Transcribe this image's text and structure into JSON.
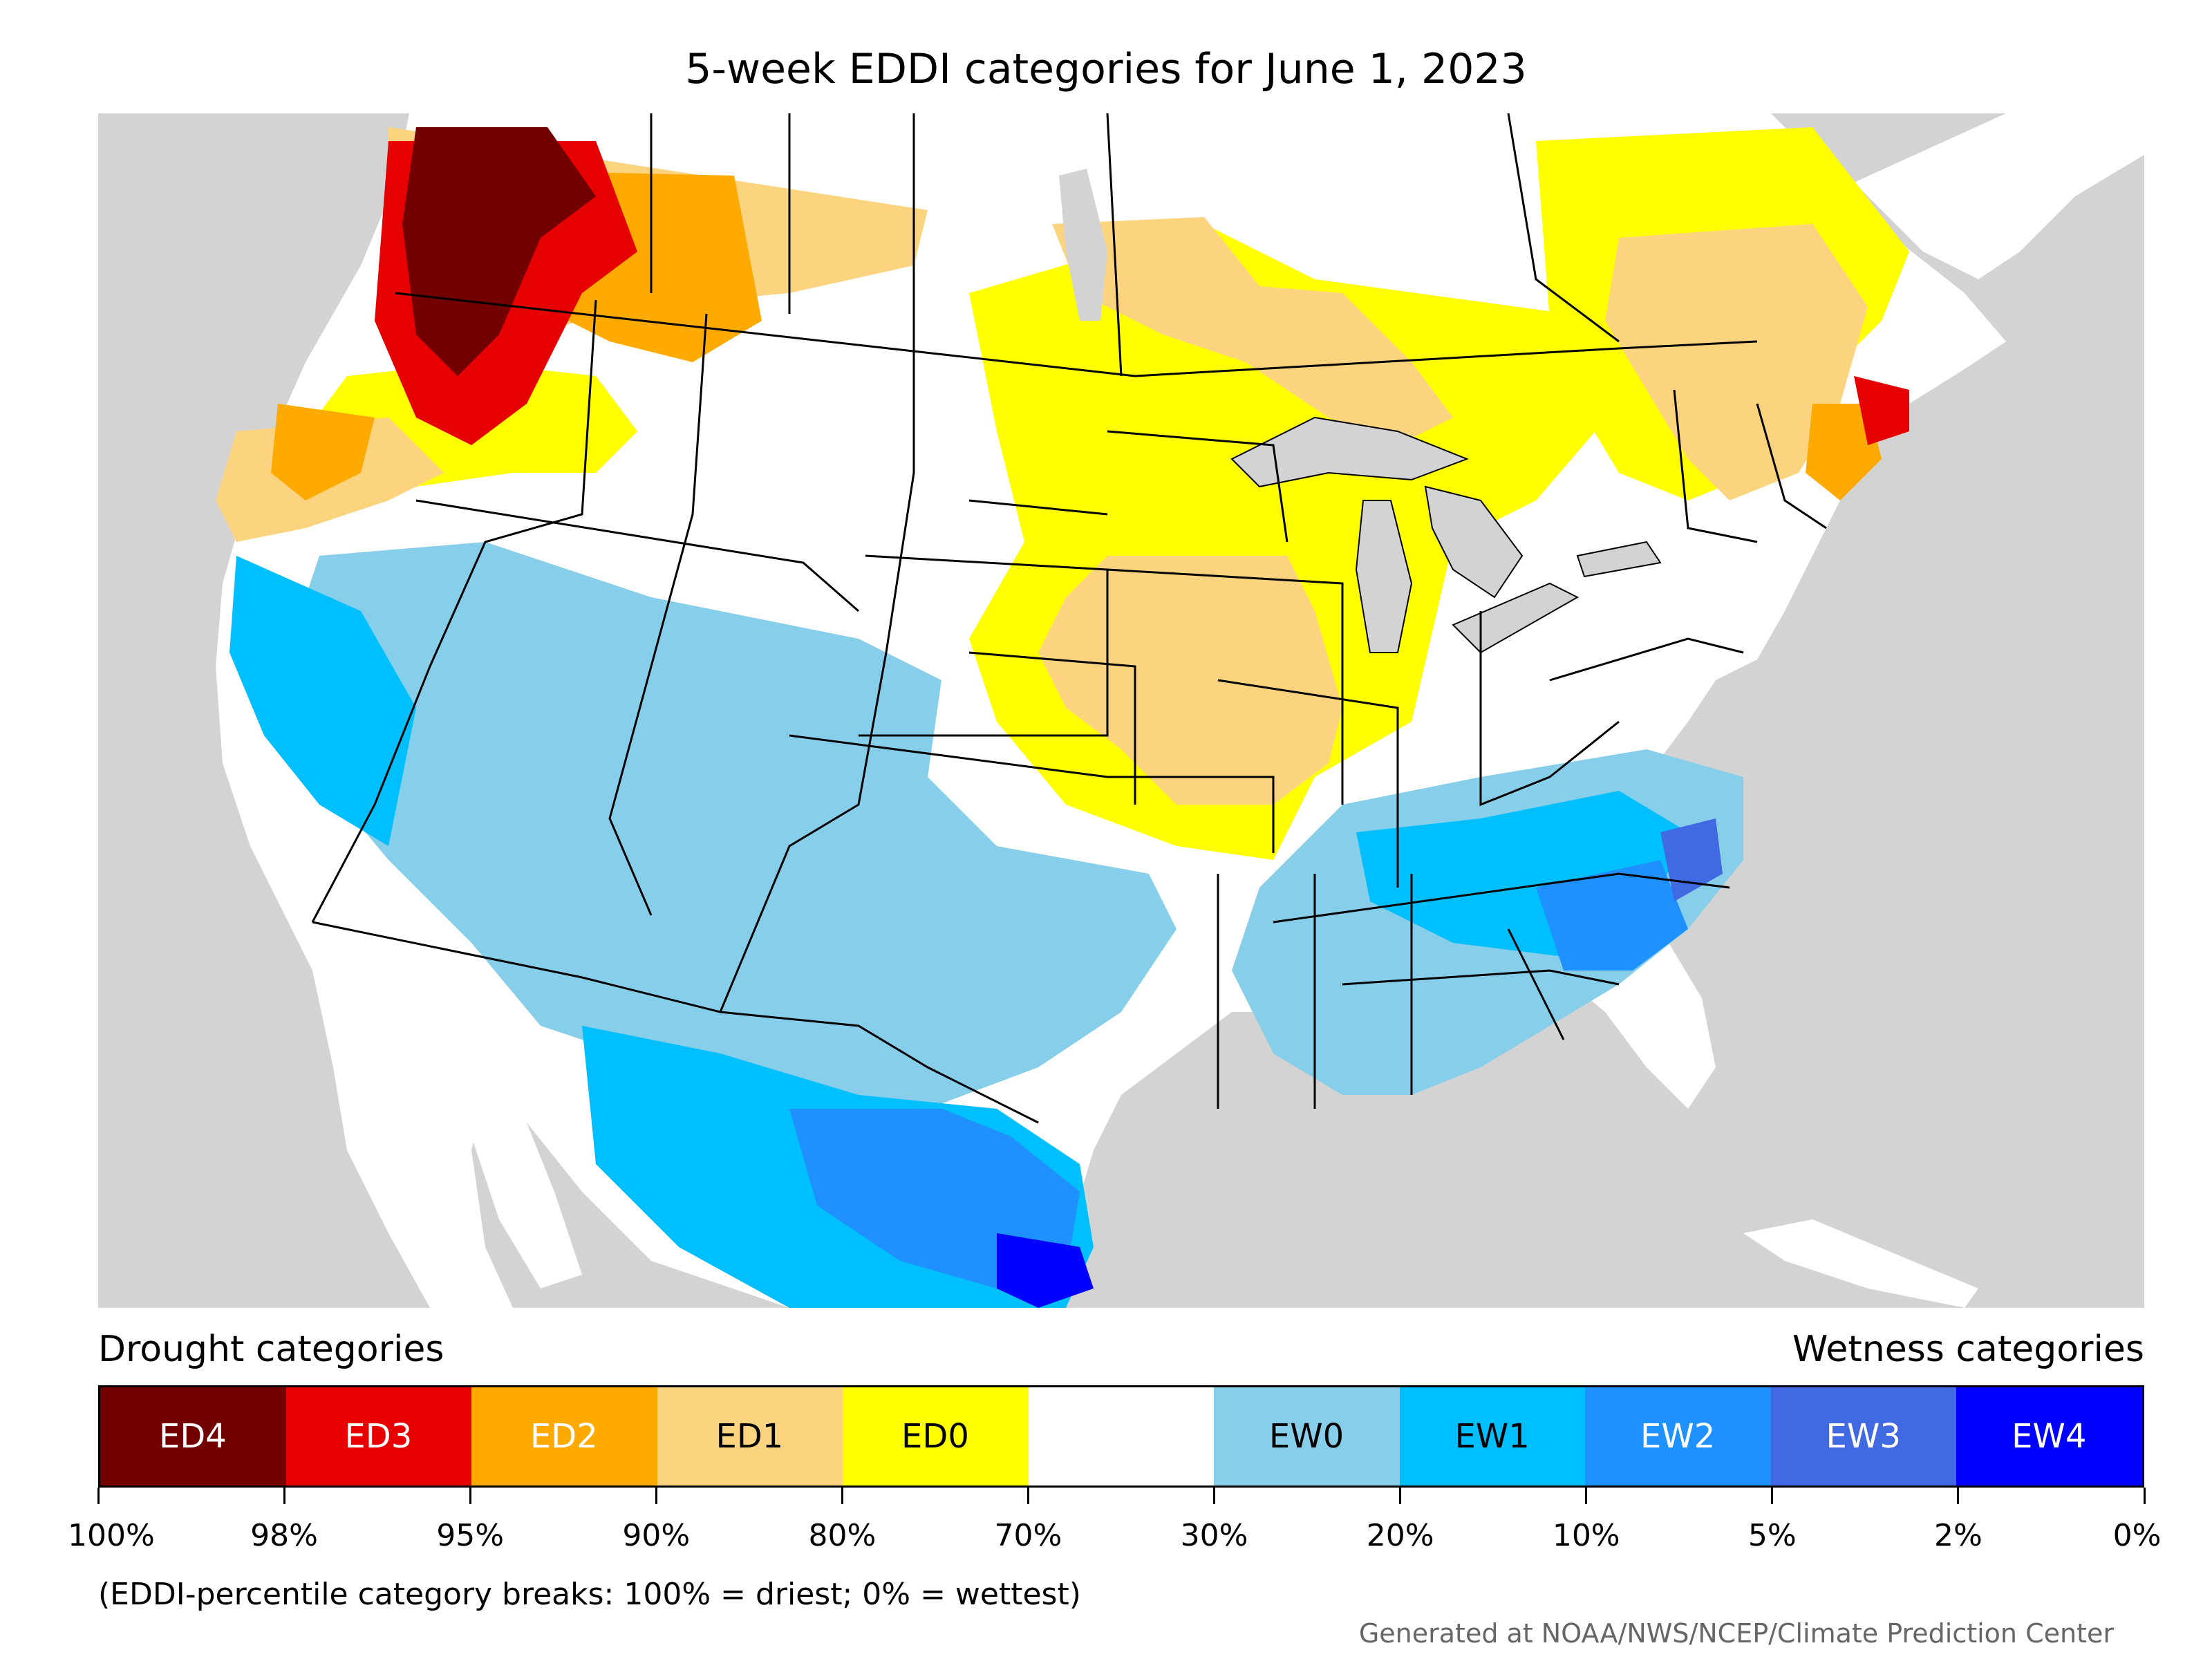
{
  "title": "5-week EDDI categories for June 1, 2023",
  "legend": {
    "drought_title": "Drought categories",
    "wetness_title": "Wetness categories",
    "categories": [
      {
        "label": "ED4",
        "color": "#730000",
        "text_color": "#ffffff"
      },
      {
        "label": "ED3",
        "color": "#e60000",
        "text_color": "#ffffff"
      },
      {
        "label": "ED2",
        "color": "#ffaa00",
        "text_color": "#ffffff"
      },
      {
        "label": "ED1",
        "color": "#fcd37f",
        "text_color": "#000000"
      },
      {
        "label": "ED0",
        "color": "#ffff00",
        "text_color": "#000000"
      },
      {
        "label": "",
        "color": "#ffffff",
        "text_color": "#000000"
      },
      {
        "label": "EW0",
        "color": "#87ceeb",
        "text_color": "#000000"
      },
      {
        "label": "EW1",
        "color": "#00bfff",
        "text_color": "#000000"
      },
      {
        "label": "EW2",
        "color": "#1e90ff",
        "text_color": "#ffffff"
      },
      {
        "label": "EW3",
        "color": "#4169e1",
        "text_color": "#ffffff"
      },
      {
        "label": "EW4",
        "color": "#0000ff",
        "text_color": "#ffffff"
      }
    ],
    "tick_labels": [
      "100%",
      "98%",
      "95%",
      "90%",
      "80%",
      "70%",
      "30%",
      "20%",
      "10%",
      "5%",
      "2%",
      "0%"
    ]
  },
  "note": "(EDDI-percentile category breaks: 100% = driest; 0% = wettest)",
  "credit": "Generated at NOAA/NWS/NCEP/Climate Prediction Center",
  "map": {
    "background_color": "#d3d3d3",
    "land_color": "#ffffff",
    "lake_color": "#d3d3d3"
  }
}
